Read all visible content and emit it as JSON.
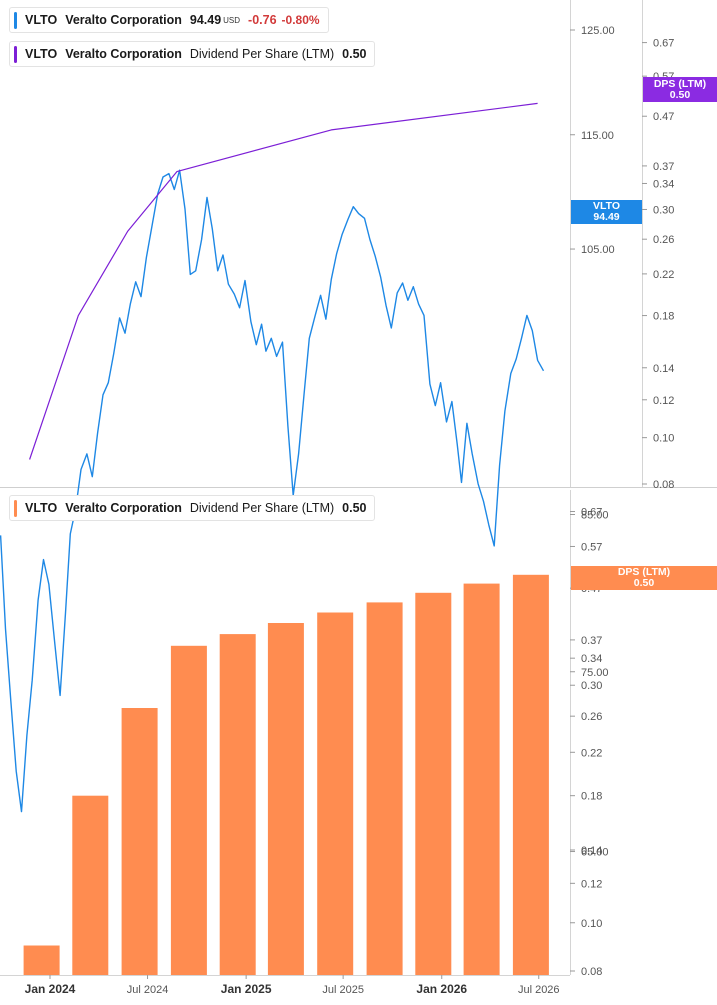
{
  "legend_price": {
    "ticker": "VLTO",
    "company": "Veralto Corporation",
    "price": "94.49",
    "currency": "USD",
    "change": "-0.76",
    "change_pct": "-0.80%",
    "color": "#1e88e5"
  },
  "legend_dps_top": {
    "ticker": "VLTO",
    "company": "Veralto Corporation",
    "metric": "Dividend Per Share (LTM)",
    "value": "0.50",
    "color": "#7c1fd6"
  },
  "legend_dps_bottom": {
    "ticker": "VLTO",
    "company": "Veralto Corporation",
    "metric": "Dividend Per Share (LTM)",
    "value": "0.50",
    "color": "#ff8c50"
  },
  "tags": {
    "price_tag": {
      "line1": "VLTO",
      "line2": "94.49",
      "color": "#1e88e5"
    },
    "dps_tag_top": {
      "line1": "DPS (LTM)",
      "line2": "0.50",
      "color": "#8b2be2"
    },
    "dps_tag_bottom": {
      "line1": "DPS (LTM)",
      "line2": "0.50",
      "color": "#ff8c50"
    }
  },
  "chart_data": [
    {
      "type": "line",
      "series": [
        {
          "name": "VLTO",
          "axis": "price",
          "color": "#1e88e5",
          "x": [
            "2023-10-27",
            "2023-11-05",
            "2023-11-15",
            "2023-11-25",
            "2023-12-05",
            "2023-12-15",
            "2023-12-25",
            "2024-01-05",
            "2024-01-15",
            "2024-01-25",
            "2024-02-05",
            "2024-02-15",
            "2024-02-25",
            "2024-03-05",
            "2024-03-15",
            "2024-03-25",
            "2024-04-05",
            "2024-04-15",
            "2024-04-25",
            "2024-05-05",
            "2024-05-15",
            "2024-05-25",
            "2024-06-05",
            "2024-06-15",
            "2024-06-25",
            "2024-07-05",
            "2024-07-15",
            "2024-07-25",
            "2024-08-05",
            "2024-08-15",
            "2024-08-25",
            "2024-09-05",
            "2024-09-15",
            "2024-09-25",
            "2024-10-05",
            "2024-10-15",
            "2024-10-25",
            "2024-11-05",
            "2024-11-15",
            "2024-11-25",
            "2024-12-05",
            "2024-12-15",
            "2024-12-25",
            "2025-01-05",
            "2025-01-15",
            "2025-01-25",
            "2025-02-05",
            "2025-02-15",
            "2025-02-25",
            "2025-03-05",
            "2025-03-15",
            "2025-03-25",
            "2025-04-05",
            "2025-04-15",
            "2025-04-25",
            "2025-05-05",
            "2025-05-15",
            "2025-05-25",
            "2025-06-05",
            "2025-06-15",
            "2025-06-25",
            "2025-07-05",
            "2025-07-15",
            "2025-07-25",
            "2025-08-05",
            "2025-08-15",
            "2025-08-25",
            "2025-09-05",
            "2025-09-15",
            "2025-09-25",
            "2025-10-05",
            "2025-10-15",
            "2025-10-25",
            "2025-11-05",
            "2025-11-15",
            "2025-11-25",
            "2025-12-05",
            "2025-12-15",
            "2025-12-25",
            "2026-01-05",
            "2026-01-15",
            "2026-01-25",
            "2026-02-05",
            "2026-02-15",
            "2026-02-25",
            "2026-03-05",
            "2026-03-15",
            "2026-03-25",
            "2026-04-05",
            "2026-04-15",
            "2026-04-25",
            "2026-05-05",
            "2026-05-15",
            "2026-05-25",
            "2026-06-05",
            "2026-06-15",
            "2026-06-25",
            "2026-07-05",
            "2026-07-15",
            "2026-07-25",
            "2026-08-05"
          ],
          "y": [
            83.6,
            77.6,
            73.3,
            69.3,
            67.1,
            71.3,
            74.5,
            79.4,
            82.0,
            80.4,
            76.7,
            73.6,
            78.6,
            83.7,
            85.4,
            88.1,
            89.2,
            87.6,
            90.7,
            93.5,
            94.4,
            96.6,
            99.4,
            98.2,
            100.5,
            102.3,
            101.1,
            104.3,
            107.1,
            109.7,
            111.2,
            111.5,
            110.1,
            111.8,
            108.4,
            102.9,
            103.2,
            105.8,
            109.4,
            106.7,
            103.2,
            104.5,
            102.1,
            101.3,
            100.2,
            102.4,
            99.1,
            97.3,
            98.9,
            96.8,
            97.8,
            96.4,
            97.5,
            91.2,
            86.3,
            89.2,
            93.5,
            97.8,
            99.6,
            101.2,
            99.3,
            102.5,
            104.6,
            106.2,
            107.5,
            108.6,
            108.0,
            107.6,
            105.8,
            104.4,
            102.7,
            100.4,
            98.6,
            101.4,
            102.2,
            100.8,
            101.9,
            100.5,
            99.6,
            94.3,
            92.7,
            94.4,
            91.5,
            93.0,
            89.9,
            87.2,
            91.4,
            89.2,
            87.1,
            85.9,
            84.3,
            82.9,
            88.4,
            92.3,
            95.1,
            96.2,
            97.8,
            99.6,
            98.4,
            96.1,
            95.3
          ]
        },
        {
          "name": "DPS (LTM)",
          "axis": "dps",
          "color": "#7c1fd6",
          "x": [
            "2023-12-20",
            "2024-03-20",
            "2024-06-20",
            "2024-09-20",
            "2025-07-05",
            "2026-07-25"
          ],
          "y": [
            0.09,
            0.18,
            0.27,
            0.36,
            0.44,
            0.5
          ]
        }
      ],
      "price_axis": {
        "ticks": [
          "125.00",
          "115.00",
          "105.00",
          "85.00",
          "75.00",
          "65.00"
        ],
        "scale": "log"
      },
      "dps_axis": {
        "ticks": [
          "0.67",
          "0.57",
          "0.47",
          "0.37",
          "0.34",
          "0.30",
          "0.26",
          "0.22",
          "0.18",
          "0.14",
          "0.12",
          "0.10",
          "0.08"
        ],
        "scale": "log"
      }
    },
    {
      "type": "bar",
      "series": [
        {
          "name": "DPS (LTM)",
          "color": "#ff8c50",
          "x": [
            "2023-12-20",
            "2024-03-20",
            "2024-06-20",
            "2024-09-20",
            "2024-12-20",
            "2025-03-20",
            "2025-06-20",
            "2025-09-20",
            "2025-12-20",
            "2026-03-20",
            "2026-06-20"
          ],
          "values": [
            0.09,
            0.18,
            0.27,
            0.36,
            0.38,
            0.4,
            0.42,
            0.44,
            0.46,
            0.48,
            0.5
          ]
        }
      ],
      "dps_axis": {
        "ticks": [
          "0.67",
          "0.57",
          "0.47",
          "0.37",
          "0.34",
          "0.30",
          "0.26",
          "0.22",
          "0.18",
          "0.14",
          "0.12",
          "0.10",
          "0.08"
        ],
        "scale": "log"
      },
      "time_axis": {
        "labels": [
          {
            "text": "Jan 2024",
            "date": "2024-01-01",
            "major": true
          },
          {
            "text": "Jul 2024",
            "date": "2024-07-01",
            "major": false
          },
          {
            "text": "Jan 2025",
            "date": "2025-01-01",
            "major": true
          },
          {
            "text": "Jul 2025",
            "date": "2025-07-01",
            "major": false
          },
          {
            "text": "Jan 2026",
            "date": "2026-01-01",
            "major": true
          },
          {
            "text": "Jul 2026",
            "date": "2026-07-01",
            "major": false
          }
        ]
      }
    }
  ]
}
